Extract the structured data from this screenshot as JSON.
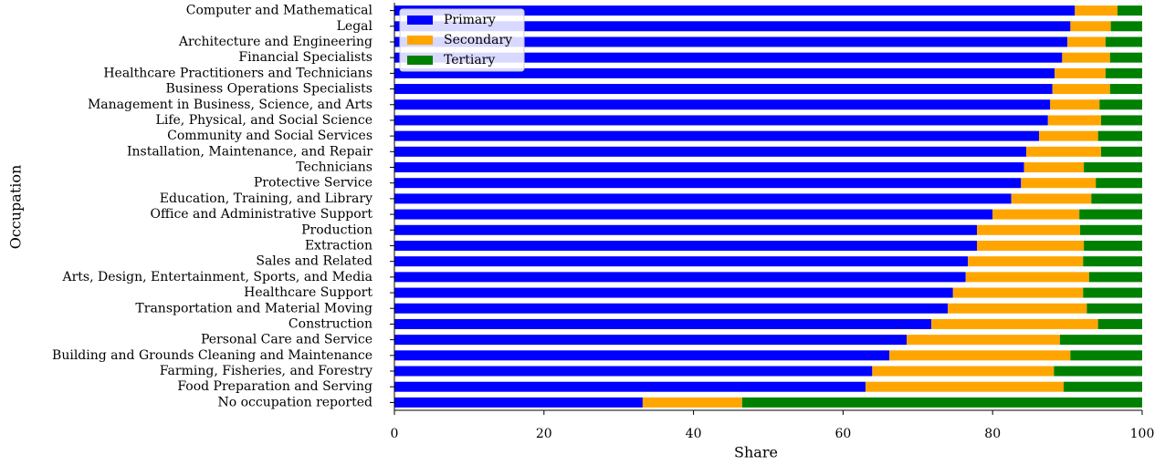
{
  "chart_data": {
    "type": "stacked_barh",
    "xlabel": "Share",
    "ylabel": "Occupation",
    "categories": [
      "Computer and Mathematical",
      "Legal",
      "Architecture and Engineering",
      "Financial Specialists",
      "Healthcare Practitioners and Technicians",
      "Business Operations Specialists",
      "Management in Business, Science, and Arts",
      "Life, Physical, and Social Science",
      "Community and Social Services",
      "Installation, Maintenance, and Repair",
      "Technicians",
      "Protective Service",
      "Education, Training, and Library",
      "Office and Administrative Support",
      "Production",
      "Extraction",
      "Sales and Related",
      "Arts, Design, Entertainment, Sports, and Media",
      "Healthcare Support",
      "Transportation and Material Moving",
      "Construction",
      "Personal Care and Service",
      "Building and Grounds Cleaning and Maintenance",
      "Farming, Fisheries, and Forestry",
      "Food Preparation and Serving",
      "No occupation reported"
    ],
    "series": [
      {
        "name": "Primary",
        "color": "#0000ff",
        "values": [
          91.0,
          90.4,
          90.0,
          89.3,
          88.3,
          88.0,
          87.7,
          87.4,
          86.2,
          84.5,
          84.2,
          83.8,
          82.5,
          80.0,
          77.9,
          77.9,
          76.7,
          76.4,
          74.7,
          74.0,
          71.8,
          68.5,
          66.2,
          63.9,
          63.0,
          33.2
        ]
      },
      {
        "name": "Secondary",
        "color": "#ffa500",
        "values": [
          5.7,
          5.4,
          5.1,
          6.4,
          6.8,
          7.7,
          6.6,
          7.1,
          7.9,
          10.0,
          8.0,
          10.0,
          10.7,
          11.6,
          13.8,
          14.3,
          15.4,
          16.5,
          17.4,
          18.6,
          22.3,
          20.5,
          24.2,
          24.3,
          26.5,
          13.3
        ]
      },
      {
        "name": "Tertiary",
        "color": "#008000",
        "values": [
          3.3,
          4.2,
          4.9,
          4.3,
          4.9,
          4.3,
          5.7,
          5.5,
          5.9,
          5.5,
          7.8,
          6.2,
          6.8,
          8.4,
          8.3,
          7.8,
          7.9,
          7.1,
          7.9,
          7.4,
          5.9,
          11.0,
          9.6,
          11.8,
          10.5,
          53.5
        ]
      }
    ],
    "xlim": [
      0,
      100
    ],
    "xticks": [
      0,
      20,
      40,
      60,
      80,
      100
    ],
    "legend": "upper left"
  }
}
